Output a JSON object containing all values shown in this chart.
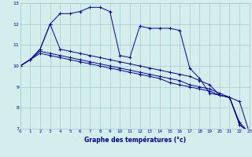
{
  "xlabel": "Graphe des températures (°c)",
  "background_color": "#d4eeee",
  "grid_color": "#a8cccc",
  "line_color": "#0000aa",
  "hours": [
    0,
    1,
    2,
    3,
    4,
    5,
    6,
    7,
    8,
    9,
    10,
    11,
    12,
    13,
    14,
    15,
    16,
    17,
    18,
    19,
    20,
    21,
    22,
    23
  ],
  "series": [
    [
      10.0,
      10.3,
      10.8,
      12.0,
      12.5,
      12.5,
      12.6,
      12.8,
      12.8,
      12.6,
      10.5,
      10.4,
      11.9,
      11.8,
      11.8,
      11.8,
      11.7,
      9.9,
      9.4,
      8.7,
      8.6,
      8.5,
      8.3,
      6.8
    ],
    [
      10.0,
      10.3,
      10.8,
      12.0,
      10.8,
      10.7,
      10.6,
      10.5,
      10.4,
      10.3,
      10.2,
      10.1,
      10.0,
      9.9,
      9.8,
      9.7,
      9.6,
      9.5,
      9.3,
      9.1,
      8.6,
      8.5,
      7.2,
      6.8
    ],
    [
      10.0,
      10.3,
      10.7,
      10.6,
      10.5,
      10.4,
      10.3,
      10.2,
      10.1,
      10.0,
      9.9,
      9.8,
      9.7,
      9.6,
      9.5,
      9.4,
      9.3,
      9.1,
      9.0,
      8.9,
      8.7,
      8.5,
      7.3,
      6.8
    ],
    [
      10.0,
      10.3,
      10.6,
      10.5,
      10.4,
      10.3,
      10.2,
      10.1,
      10.0,
      9.9,
      9.8,
      9.7,
      9.6,
      9.5,
      9.4,
      9.2,
      9.1,
      9.0,
      8.9,
      8.8,
      8.6,
      8.5,
      7.2,
      6.8
    ]
  ],
  "ylim": [
    7,
    13
  ],
  "yticks": [
    7,
    8,
    9,
    10,
    11,
    12,
    13
  ],
  "xlim": [
    0,
    23
  ],
  "xticks": [
    0,
    1,
    2,
    3,
    4,
    5,
    6,
    7,
    8,
    9,
    10,
    11,
    12,
    13,
    14,
    15,
    16,
    17,
    18,
    19,
    20,
    21,
    22,
    23
  ]
}
